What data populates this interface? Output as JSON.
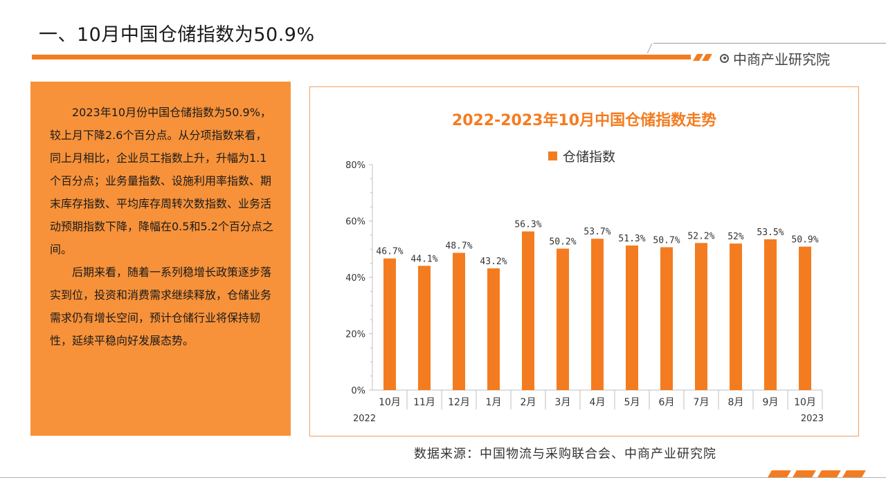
{
  "page": {
    "title": "一、10月中国仓储指数为50.9%",
    "brand": "中商产业研究院",
    "source": "数据来源：中国物流与采购联合会、中商产业研究院"
  },
  "text_panel": {
    "paragraph1": "2023年10月份中国仓储指数为50.9%，较上月下降2.6个百分点。从分项指数来看，同上月相比，企业员工指数上升，升幅为1.1个百分点；业务量指数、设施利用率指数、期末库存指数、平均库存周转次数指数、业务活动预期指数下降，降幅在0.5和5.2个百分点之间。",
    "paragraph2": "后期来看，随着一系列稳增长政策逐步落实到位，投资和消费需求继续释放，仓储业务需求仍有增长空间，预计仓储行业将保持韧性，延续平稳向好发展态势。"
  },
  "colors": {
    "accent": "#f47c20",
    "panel": "#f7923a"
  },
  "chart_data": {
    "type": "bar",
    "title": "2022-2023年10月中国仓储指数走势",
    "categories": [
      "10月",
      "11月",
      "12月",
      "1月",
      "2月",
      "3月",
      "4月",
      "5月",
      "6月",
      "7月",
      "8月",
      "9月",
      "10月"
    ],
    "year_labels": {
      "start": "2022",
      "end": "2023"
    },
    "series": [
      {
        "name": "仓储指数",
        "values": [
          46.7,
          44.1,
          48.7,
          43.2,
          56.3,
          50.2,
          53.7,
          51.3,
          50.7,
          52.2,
          52,
          53.5,
          50.9
        ],
        "labels": [
          "46.7%",
          "44.1%",
          "48.7%",
          "43.2%",
          "56.3%",
          "50.2%",
          "53.7%",
          "51.3%",
          "50.7%",
          "52.2%",
          "52%",
          "53.5%",
          "50.9%"
        ]
      }
    ],
    "ylim": [
      0,
      80
    ],
    "yticks": [
      "0%",
      "20%",
      "40%",
      "60%",
      "80%"
    ],
    "legend": "top-center",
    "grid": false
  }
}
